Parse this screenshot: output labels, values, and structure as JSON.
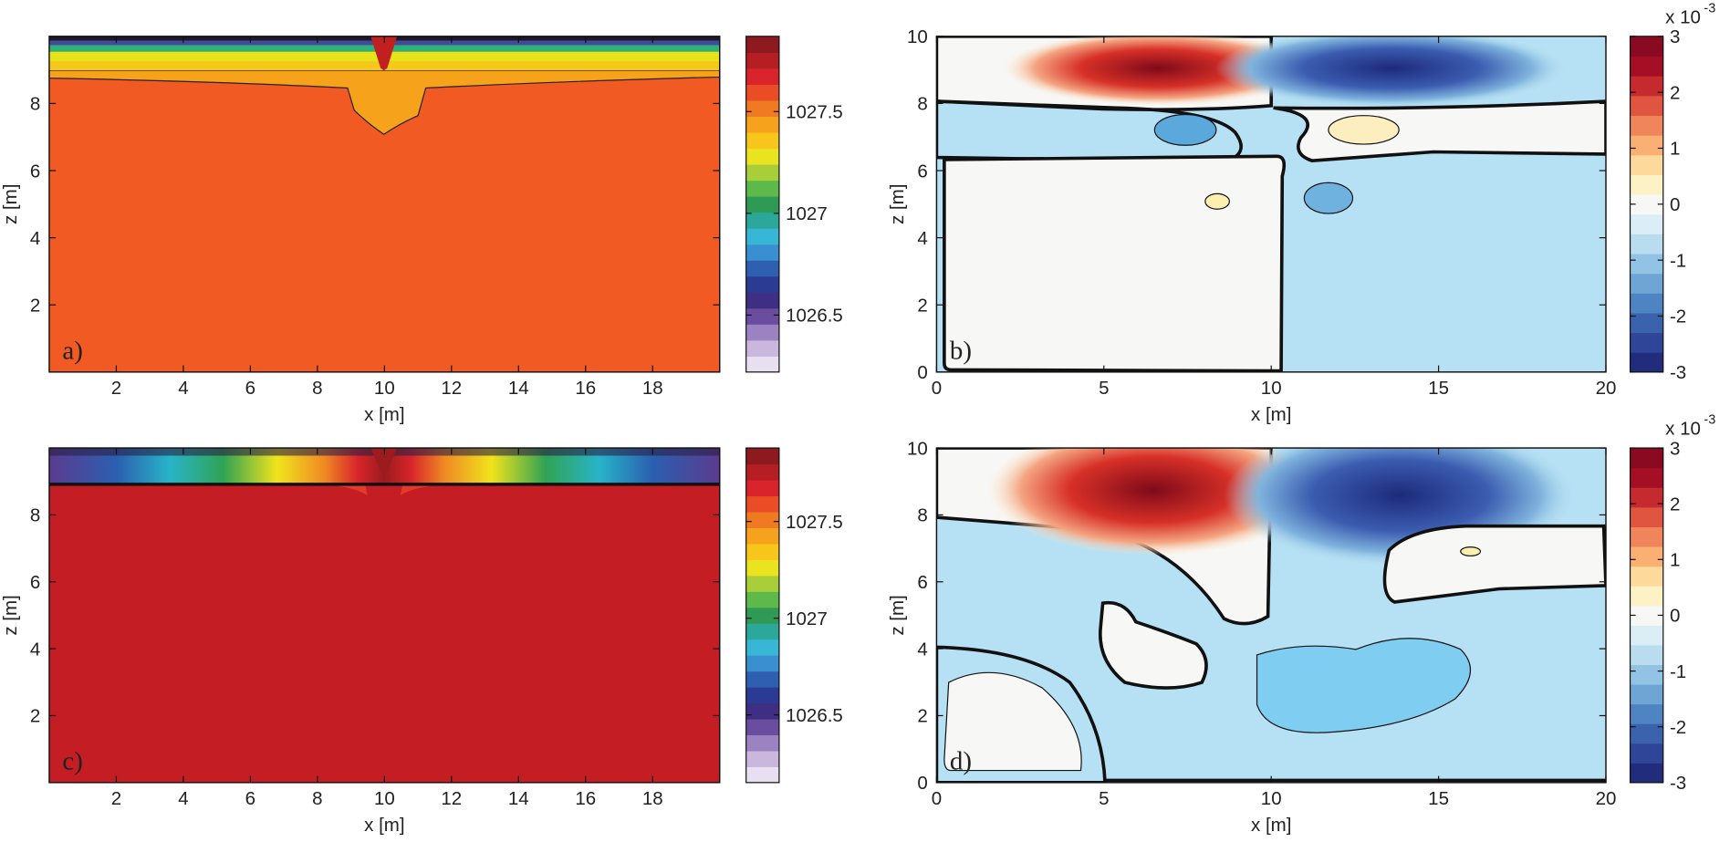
{
  "chart_data": [
    {
      "type": "contour",
      "panel_label": "a)",
      "xlabel": "x [m]",
      "ylabel": "z [m]",
      "xlim": [
        0,
        20
      ],
      "ylim": [
        0,
        10
      ],
      "xticks": [
        2,
        4,
        6,
        8,
        10,
        12,
        14,
        16,
        18
      ],
      "yticks": [
        2,
        4,
        6,
        8
      ],
      "colorbar": {
        "clim": [
          1026.22,
          1027.87
        ],
        "ticks": [
          1026.5,
          1027,
          1027.5
        ],
        "colormap": [
          "#e8dff0",
          "#c9b7dd",
          "#9b82c0",
          "#6a4d9f",
          "#3e2f84",
          "#2b3a93",
          "#2f5fb0",
          "#3a8fd0",
          "#38b6d6",
          "#2ba89a",
          "#2f9a55",
          "#5cb94a",
          "#a8cf3a",
          "#e9e41f",
          "#f8c51b",
          "#f6a21c",
          "#f07a22",
          "#ea4d25",
          "#d8242a",
          "#b51f24",
          "#8c1a1f"
        ]
      }
    },
    {
      "type": "contour",
      "panel_label": "b)",
      "xlabel": "x [m]",
      "ylabel": "z [m]",
      "xlim": [
        0,
        20
      ],
      "ylim": [
        0,
        10
      ],
      "xticks": [
        0,
        5,
        10,
        15,
        20
      ],
      "yticks": [
        0,
        2,
        4,
        6,
        8,
        10
      ],
      "colorbar": {
        "clim": [
          -3,
          3
        ],
        "ticks": [
          -3,
          -2,
          -1,
          0,
          1,
          2,
          3
        ],
        "multiplier": "x 10",
        "exponent": "-3",
        "colormap": [
          "#212c7c",
          "#2f4597",
          "#3a62ad",
          "#4f84c2",
          "#6ea5d5",
          "#93c3e4",
          "#b9dcef",
          "#dbeef6",
          "#f7f7f5",
          "#fdf1c6",
          "#fdd99b",
          "#f9b072",
          "#f0845a",
          "#e0553f",
          "#c52a2e",
          "#a50f26",
          "#8a0a22"
        ]
      }
    },
    {
      "type": "contour",
      "panel_label": "c)",
      "xlabel": "x [m]",
      "ylabel": "z [m]",
      "xlim": [
        0,
        20
      ],
      "ylim": [
        0,
        10
      ],
      "xticks": [
        2,
        4,
        6,
        8,
        10,
        12,
        14,
        16,
        18
      ],
      "yticks": [
        2,
        4,
        6,
        8
      ],
      "colorbar": {
        "clim": [
          1026.15,
          1027.88
        ],
        "ticks": [
          1026.5,
          1027,
          1027.5
        ],
        "colormap": [
          "#e8dff0",
          "#c9b7dd",
          "#9b82c0",
          "#6a4d9f",
          "#3e2f84",
          "#2b3a93",
          "#2f5fb0",
          "#3a8fd0",
          "#38b6d6",
          "#2ba89a",
          "#2f9a55",
          "#5cb94a",
          "#a8cf3a",
          "#e9e41f",
          "#f8c51b",
          "#f6a21c",
          "#f07a22",
          "#ea4d25",
          "#d8242a",
          "#b51f24",
          "#8c1a1f"
        ]
      }
    },
    {
      "type": "contour",
      "panel_label": "d)",
      "xlabel": "x [m]",
      "ylabel": "z [m]",
      "xlim": [
        0,
        20
      ],
      "ylim": [
        0,
        10
      ],
      "xticks": [
        0,
        5,
        10,
        15,
        20
      ],
      "yticks": [
        0,
        2,
        4,
        6,
        8,
        10
      ],
      "colorbar": {
        "clim": [
          -3,
          3
        ],
        "ticks": [
          -3,
          -2,
          -1,
          0,
          1,
          2,
          3
        ],
        "multiplier": "x 10",
        "exponent": "-3",
        "colormap": [
          "#212c7c",
          "#2f4597",
          "#3a62ad",
          "#4f84c2",
          "#6ea5d5",
          "#93c3e4",
          "#b9dcef",
          "#dbeef6",
          "#f7f7f5",
          "#fdf1c6",
          "#fdd99b",
          "#f9b072",
          "#f0845a",
          "#e0553f",
          "#c52a2e",
          "#a50f26",
          "#8a0a22"
        ]
      }
    }
  ]
}
